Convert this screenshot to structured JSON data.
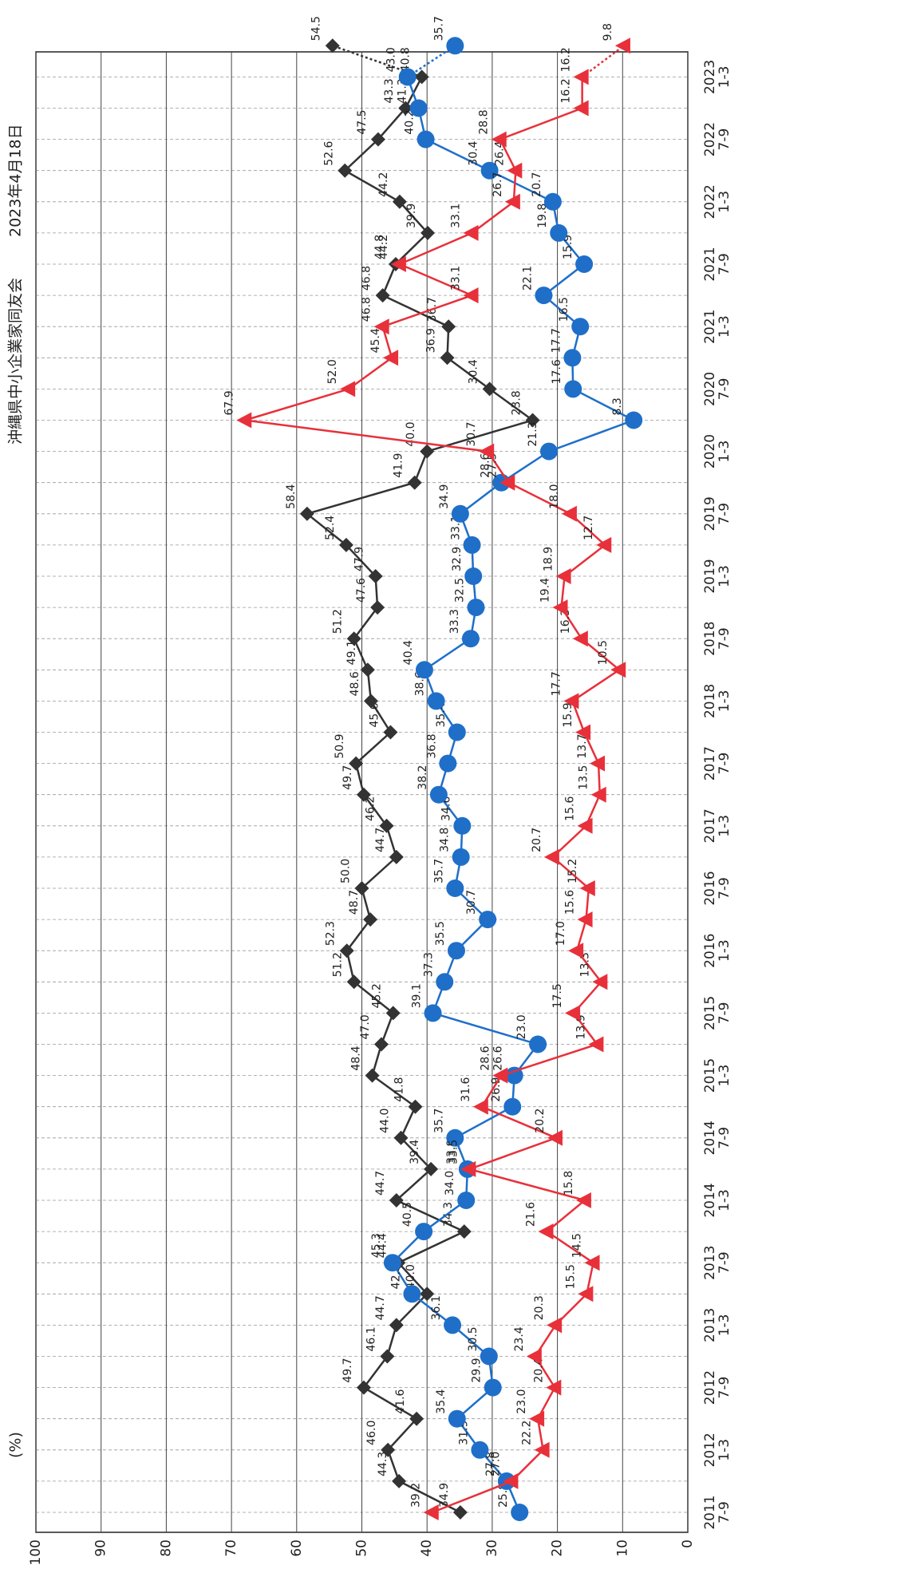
{
  "chart_data": {
    "type": "line",
    "unit_label": "(%)",
    "organization": "沖縄県中小企業家同友会",
    "date": "2023年4月18日",
    "categories": [
      "2011\n7-9",
      null,
      "2012\n1-3",
      null,
      "2012\n7-9",
      null,
      "2013\n1-3",
      null,
      "2013\n7-9",
      null,
      "2014\n1-3",
      null,
      "2014\n7-9",
      null,
      "2015\n1-3",
      null,
      "2015\n7-9",
      null,
      "2016\n1-3",
      null,
      "2016\n7-9",
      null,
      "2017\n1-3",
      null,
      "2017\n7-9",
      null,
      "2018\n1-3",
      null,
      "2018\n7-9",
      null,
      "2019\n1-3",
      null,
      "2019\n7-9",
      null,
      "2020\n1-3",
      null,
      "2020\n7-9",
      null,
      "2021\n1-3",
      null,
      "2021\n7-9",
      null,
      "2022\n1-3",
      null,
      "2022\n7-9",
      null,
      "2023\n1-3",
      null
    ],
    "ylim": [
      0,
      100
    ],
    "yticks": [
      0,
      10,
      20,
      30,
      40,
      50,
      60,
      70,
      80,
      90,
      100
    ],
    "grid": true,
    "series": [
      {
        "color": "#333333",
        "marker": "diamond",
        "values": [
          34.9,
          44.3,
          46.0,
          41.6,
          49.7,
          46.1,
          44.7,
          40.0,
          44.4,
          34.3,
          44.7,
          39.4,
          44.0,
          41.8,
          48.4,
          47.0,
          45.2,
          51.2,
          52.3,
          48.7,
          50.0,
          44.7,
          46.2,
          49.7,
          50.9,
          45.6,
          48.6,
          49.1,
          51.2,
          47.6,
          47.9,
          52.4,
          58.4,
          41.9,
          40.0,
          23.8,
          30.4,
          36.9,
          36.7,
          46.8,
          44.8,
          39.9,
          44.2,
          52.6,
          47.5,
          43.3,
          40.8,
          54.5
        ],
        "value_labels": [
          "34.9",
          "44.3",
          "46.0",
          "41.6",
          "49.7",
          "46.1",
          "44.7",
          "40.0",
          "44.4",
          "34.3",
          "44.7",
          "39.4",
          "44.0",
          "41.8",
          "48.4",
          "47.0",
          "45.2",
          "51.2",
          "52.3",
          "48.7",
          "50.0",
          "44.7",
          "46.2",
          "49.7",
          "50.9",
          "45.6",
          "48.6",
          "49.1",
          "51.2",
          "47.6",
          "47.9",
          "52.4",
          "58.4",
          "41.9",
          "40.0",
          "23.8",
          "30.4",
          "36.9",
          "36.7",
          "46.8",
          "44.8",
          "39.9",
          "44.2",
          "52.6",
          "47.5",
          "43.3",
          "40.8",
          "54.5"
        ]
      },
      {
        "color": "#1f6fc9",
        "marker": "circle",
        "values": [
          25.8,
          27.8,
          31.9,
          35.4,
          29.9,
          30.5,
          36.1,
          42.3,
          45.3,
          40.5,
          34.0,
          33.8,
          35.7,
          26.9,
          26.6,
          23.0,
          39.1,
          37.3,
          35.5,
          30.7,
          35.7,
          34.8,
          34.6,
          38.2,
          36.8,
          35.4,
          38.6,
          40.4,
          33.3,
          32.5,
          32.9,
          33.1,
          34.9,
          28.6,
          21.3,
          8.3,
          17.6,
          17.7,
          16.5,
          22.1,
          15.9,
          19.8,
          20.7,
          30.4,
          40.2,
          41.3,
          43.0,
          35.7
        ],
        "value_labels": [
          "25.8",
          "27.8",
          "31.9",
          "35.4",
          "29.9",
          "30.5",
          "36.1",
          "42.3",
          "45.3",
          "40.5",
          "34.0",
          "33.8",
          "35.7",
          "26.9",
          "26.6",
          "23.0",
          "39.1",
          "37.3",
          "35.5",
          "30.7",
          "35.7",
          "34.8",
          "34.6",
          "38.2",
          "36.8",
          "35.4",
          "38.6",
          "40.4",
          "33.3",
          "32.5",
          "32.9",
          "33.1",
          "34.9",
          "28.6",
          "21.3",
          "8.3",
          "17.6",
          "17.7",
          "16.5",
          "22.1",
          "15.9",
          "19.8",
          "20.7",
          "30.4",
          "40.2",
          "41.3",
          "43.0",
          "35.7"
        ]
      },
      {
        "color": "#e8303a",
        "marker": "triangle",
        "values": [
          39.2,
          27.0,
          22.2,
          23.0,
          20.4,
          23.4,
          20.3,
          15.5,
          14.5,
          21.6,
          15.8,
          33.5,
          20.2,
          31.6,
          28.6,
          13.9,
          17.5,
          13.3,
          17.0,
          15.6,
          15.2,
          20.7,
          15.6,
          13.5,
          13.7,
          15.9,
          17.7,
          10.5,
          16.3,
          19.4,
          18.9,
          12.7,
          18.0,
          27.5,
          30.7,
          67.9,
          52.0,
          45.4,
          46.8,
          33.1,
          44.2,
          33.1,
          26.7,
          26.4,
          28.8,
          16.2,
          16.2,
          9.8
        ],
        "value_labels": [
          "39.2",
          "27.0",
          "22.2",
          "23.0",
          "20.4",
          "23.4",
          "20.3",
          "15.5",
          "14.5",
          "21.6",
          "15.8",
          "33.5",
          "20.2",
          "31.6",
          "28.6",
          "13.9",
          "17.5",
          "13.3",
          "17.0",
          "15.6",
          "15.2",
          "20.7",
          "15.6",
          "13.5",
          "13.7",
          "15.9",
          "17.7",
          "10.5",
          "16.3",
          "19.4",
          "18.9",
          "12.7",
          "18.0",
          "27.5",
          "30.7",
          "67.9",
          "52.0",
          "45.4",
          "46.8",
          "33.1",
          "44.2",
          "33.1",
          "26.7",
          "26.4",
          "28.8",
          "16.2",
          "16.2",
          "9.8"
        ]
      }
    ]
  }
}
